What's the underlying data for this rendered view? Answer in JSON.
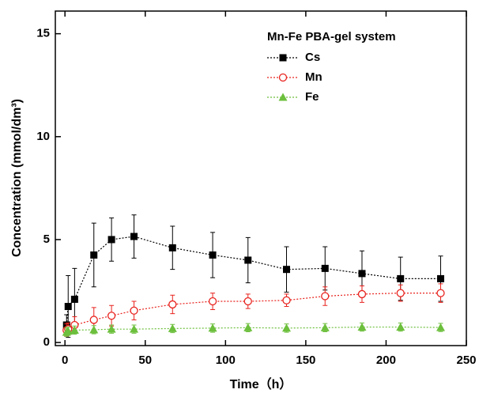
{
  "chart_data": {
    "type": "line",
    "legend_title": "Mn-Fe PBA-gel system",
    "x_label": "Time（h）",
    "y_label": "Concentration (mmol/dm³)",
    "xlim": [
      -6,
      250
    ],
    "xticks": [
      0,
      50,
      100,
      150,
      200,
      250
    ],
    "ylim": [
      -0.15,
      16.1
    ],
    "yticks": [
      0,
      5,
      10,
      15
    ],
    "legend": "upper right",
    "series": [
      {
        "name": "Cs",
        "color": "#000000",
        "marker": "square",
        "x": [
          1,
          2,
          6,
          18,
          29,
          43,
          67,
          92,
          114,
          138,
          162,
          185,
          209,
          234
        ],
        "values": [
          0.85,
          1.75,
          2.1,
          4.25,
          5.0,
          5.15,
          4.6,
          4.25,
          4.0,
          3.55,
          3.6,
          3.35,
          3.1,
          3.1
        ],
        "errors": [
          0.5,
          1.5,
          1.5,
          1.55,
          1.05,
          1.05,
          1.05,
          1.1,
          1.1,
          1.1,
          1.05,
          1.1,
          1.05,
          1.1
        ]
      },
      {
        "name": "Mn",
        "color": "#e8231e",
        "marker": "open-circle",
        "x": [
          1,
          2,
          6,
          18,
          29,
          43,
          67,
          92,
          114,
          138,
          162,
          185,
          209,
          234
        ],
        "values": [
          0.6,
          0.65,
          0.85,
          1.1,
          1.3,
          1.55,
          1.85,
          2.0,
          2.0,
          2.05,
          2.25,
          2.35,
          2.4,
          2.4
        ],
        "errors": [
          0.3,
          0.3,
          0.4,
          0.6,
          0.5,
          0.45,
          0.45,
          0.4,
          0.35,
          0.3,
          0.45,
          0.4,
          0.4,
          0.45
        ]
      },
      {
        "name": "Fe",
        "color": "#6cbf3c",
        "marker": "triangle",
        "x": [
          1,
          2,
          6,
          18,
          29,
          43,
          67,
          92,
          114,
          138,
          162,
          185,
          209,
          234
        ],
        "values": [
          0.5,
          0.55,
          0.6,
          0.62,
          0.65,
          0.65,
          0.68,
          0.7,
          0.72,
          0.7,
          0.72,
          0.75,
          0.75,
          0.73
        ],
        "errors": [
          0.2,
          0.2,
          0.2,
          0.2,
          0.2,
          0.2,
          0.2,
          0.2,
          0.2,
          0.2,
          0.2,
          0.2,
          0.2,
          0.2
        ]
      }
    ]
  }
}
